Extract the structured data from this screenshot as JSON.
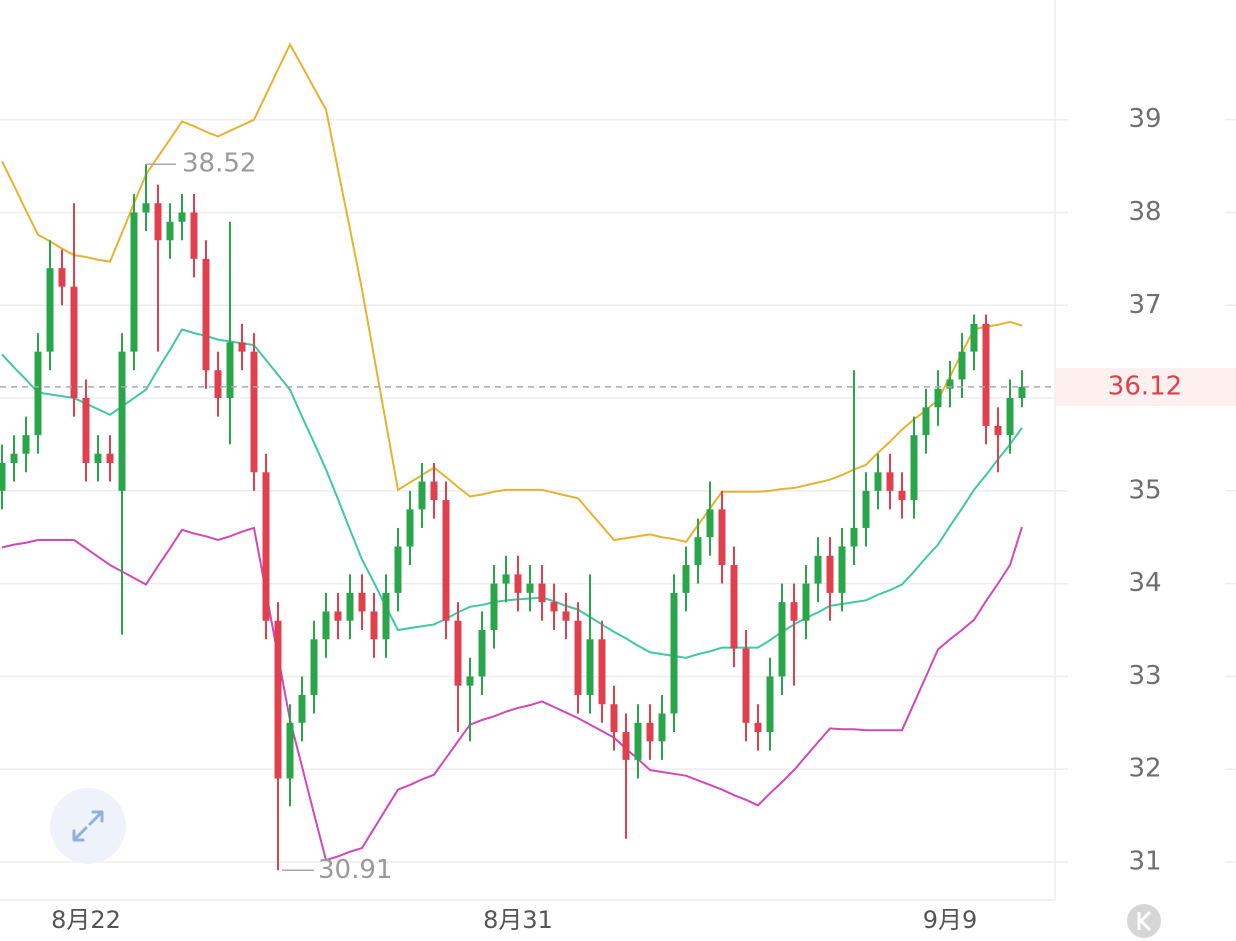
{
  "chart_data": {
    "type": "candlestick",
    "categories": [
      null,
      null,
      null,
      null,
      null,
      null,
      null,
      "8月22",
      null,
      null,
      null,
      null,
      null,
      null,
      null,
      null,
      null,
      null,
      null,
      null,
      null,
      null,
      null,
      null,
      null,
      null,
      null,
      null,
      null,
      null,
      null,
      null,
      null,
      null,
      null,
      null,
      null,
      null,
      null,
      null,
      null,
      null,
      null,
      "8月31",
      null,
      null,
      null,
      null,
      null,
      null,
      null,
      null,
      null,
      null,
      null,
      null,
      null,
      null,
      null,
      null,
      null,
      null,
      null,
      null,
      null,
      null,
      null,
      null,
      null,
      null,
      null,
      null,
      null,
      null,
      null,
      null,
      null,
      null,
      null,
      "9月9",
      null,
      null,
      null,
      null,
      null,
      null
    ],
    "open": [
      35.0,
      35.3,
      35.4,
      35.6,
      36.5,
      37.4,
      37.2,
      36.0,
      35.3,
      35.4,
      35.0,
      36.5,
      38.0,
      38.1,
      37.7,
      37.9,
      38.0,
      37.5,
      36.3,
      36.0,
      36.6,
      36.5,
      35.2,
      33.6,
      31.9,
      32.5,
      32.8,
      33.4,
      33.7,
      33.6,
      33.9,
      33.7,
      33.4,
      33.9,
      34.4,
      34.8,
      35.1,
      34.9,
      33.6,
      32.9,
      33.0,
      33.5,
      34.0,
      34.1,
      33.9,
      34.0,
      33.8,
      33.7,
      33.6,
      32.8,
      33.4,
      32.7,
      32.4,
      32.1,
      32.5,
      32.3,
      32.6,
      33.9,
      34.2,
      34.5,
      34.8,
      34.2,
      33.3,
      32.5,
      32.4,
      33.0,
      33.8,
      33.6,
      34.0,
      34.3,
      33.9,
      34.4,
      34.6,
      35.0,
      35.2,
      35.0,
      34.9,
      35.6,
      35.9,
      36.1,
      36.2,
      36.5,
      36.8,
      35.7,
      35.6,
      36.0
    ],
    "high": [
      35.5,
      35.6,
      35.8,
      36.7,
      37.7,
      37.6,
      38.1,
      36.2,
      35.6,
      35.6,
      36.7,
      38.2,
      38.52,
      38.3,
      38.1,
      38.2,
      38.2,
      37.7,
      36.5,
      37.9,
      36.8,
      36.7,
      35.4,
      33.8,
      32.7,
      33.0,
      33.6,
      33.9,
      33.9,
      34.1,
      34.1,
      33.9,
      34.1,
      34.6,
      35.0,
      35.3,
      35.3,
      35.1,
      33.8,
      33.2,
      33.7,
      34.2,
      34.3,
      34.3,
      34.2,
      34.2,
      34.0,
      33.9,
      33.8,
      34.1,
      33.6,
      32.9,
      32.6,
      32.7,
      32.7,
      32.8,
      34.1,
      34.4,
      34.7,
      35.1,
      35.0,
      34.4,
      33.5,
      32.7,
      33.2,
      34.0,
      34.0,
      34.2,
      34.5,
      34.5,
      34.6,
      36.3,
      35.2,
      35.4,
      35.4,
      35.2,
      35.8,
      36.1,
      36.3,
      36.4,
      36.7,
      36.9,
      36.9,
      35.9,
      36.2,
      36.3
    ],
    "low": [
      34.8,
      35.1,
      35.2,
      35.4,
      36.3,
      37.0,
      35.8,
      35.1,
      35.1,
      35.1,
      33.45,
      36.3,
      37.8,
      36.5,
      37.5,
      37.7,
      37.3,
      36.1,
      35.8,
      35.5,
      36.3,
      35.0,
      33.4,
      30.91,
      31.6,
      32.3,
      32.6,
      33.2,
      33.4,
      33.4,
      33.5,
      33.2,
      33.2,
      33.7,
      34.2,
      34.6,
      34.7,
      33.4,
      32.4,
      32.3,
      32.8,
      33.3,
      33.8,
      33.7,
      33.7,
      33.6,
      33.5,
      33.4,
      32.6,
      32.6,
      32.5,
      32.2,
      31.25,
      31.9,
      32.1,
      32.1,
      32.4,
      33.7,
      34.0,
      34.3,
      34.0,
      33.1,
      32.3,
      32.2,
      32.2,
      32.8,
      32.9,
      33.4,
      33.8,
      33.6,
      33.7,
      34.2,
      34.4,
      34.8,
      34.8,
      34.7,
      34.7,
      35.4,
      35.7,
      35.9,
      36.0,
      36.3,
      35.5,
      35.2,
      35.4,
      35.9
    ],
    "close": [
      35.3,
      35.4,
      35.6,
      36.5,
      37.4,
      37.2,
      36.0,
      35.3,
      35.4,
      35.3,
      36.5,
      38.0,
      38.1,
      37.7,
      37.9,
      38.0,
      37.5,
      36.3,
      36.0,
      36.6,
      36.5,
      35.2,
      33.6,
      31.9,
      32.5,
      32.8,
      33.4,
      33.7,
      33.6,
      33.9,
      33.7,
      33.4,
      33.9,
      34.4,
      34.8,
      35.1,
      34.9,
      33.6,
      32.9,
      33.0,
      33.5,
      34.0,
      34.1,
      33.9,
      34.0,
      33.8,
      33.7,
      33.6,
      32.8,
      33.4,
      32.7,
      32.4,
      32.1,
      32.5,
      32.3,
      32.6,
      33.9,
      34.2,
      34.5,
      34.8,
      34.2,
      33.3,
      32.5,
      32.4,
      33.0,
      33.8,
      33.6,
      34.0,
      34.3,
      33.9,
      34.4,
      34.6,
      35.0,
      35.2,
      35.0,
      34.9,
      35.6,
      35.9,
      36.1,
      36.2,
      36.5,
      36.8,
      35.7,
      35.6,
      36.0,
      36.12
    ],
    "up_color": "#2aa64a",
    "down_color": "#e0404e",
    "series": [
      {
        "color": "#e8b230",
        "values": [
          38.55,
          38.29,
          38.02,
          37.76,
          37.69,
          37.61,
          37.54,
          37.52,
          37.49,
          37.47,
          37.78,
          38.1,
          38.41,
          38.6,
          38.79,
          38.98,
          38.93,
          38.87,
          38.82,
          38.88,
          38.94,
          39.0,
          39.27,
          39.54,
          39.81,
          39.58,
          39.34,
          39.11,
          38.46,
          37.82,
          37.17,
          36.45,
          35.73,
          35.01,
          35.09,
          35.17,
          35.25,
          35.15,
          35.04,
          34.94,
          34.96,
          34.99,
          35.01,
          35.01,
          35.01,
          35.01,
          34.98,
          34.95,
          34.92,
          34.77,
          34.62,
          34.47,
          34.49,
          34.51,
          34.53,
          34.5,
          34.48,
          34.45,
          34.63,
          34.81,
          34.99,
          34.99,
          34.99,
          34.99,
          35.0,
          35.02,
          35.03,
          35.06,
          35.09,
          35.12,
          35.17,
          35.23,
          35.28,
          35.41,
          35.53,
          35.66,
          35.77,
          35.87,
          35.98,
          36.23,
          36.49,
          36.74,
          36.77,
          36.79,
          36.82,
          36.78
        ]
      },
      {
        "color": "#3ec9a2",
        "values": [
          36.47,
          36.33,
          36.2,
          36.06,
          36.04,
          36.02,
          36.0,
          35.94,
          35.88,
          35.82,
          35.91,
          36.0,
          36.09,
          36.31,
          36.52,
          36.74,
          36.7,
          36.67,
          36.63,
          36.61,
          36.59,
          36.57,
          36.41,
          36.25,
          36.09,
          35.8,
          35.52,
          35.23,
          34.91,
          34.58,
          34.26,
          34.01,
          33.75,
          33.5,
          33.52,
          33.54,
          33.56,
          33.62,
          33.69,
          33.75,
          33.77,
          33.8,
          33.82,
          33.83,
          33.84,
          33.85,
          33.81,
          33.76,
          33.72,
          33.64,
          33.56,
          33.48,
          33.41,
          33.33,
          33.26,
          33.24,
          33.22,
          33.2,
          33.24,
          33.27,
          33.31,
          33.31,
          33.31,
          33.31,
          33.39,
          33.48,
          33.56,
          33.63,
          33.69,
          33.76,
          33.78,
          33.8,
          33.82,
          33.88,
          33.93,
          33.99,
          34.13,
          34.28,
          34.42,
          34.62,
          34.81,
          35.01,
          35.17,
          35.34,
          35.5,
          35.68
        ]
      },
      {
        "color": "#d048bc",
        "values": [
          34.39,
          34.42,
          34.44,
          34.47,
          34.47,
          34.47,
          34.47,
          34.38,
          34.29,
          34.2,
          34.13,
          34.06,
          33.99,
          34.19,
          34.38,
          34.58,
          34.54,
          34.51,
          34.47,
          34.51,
          34.56,
          34.6,
          33.91,
          33.22,
          32.53,
          32.03,
          31.52,
          31.02,
          31.06,
          31.11,
          31.15,
          31.36,
          31.57,
          31.78,
          31.83,
          31.89,
          31.94,
          32.12,
          32.3,
          32.48,
          32.53,
          32.57,
          32.62,
          32.66,
          32.69,
          32.73,
          32.67,
          32.61,
          32.55,
          32.48,
          32.41,
          32.34,
          32.22,
          32.11,
          31.99,
          31.97,
          31.95,
          31.93,
          31.88,
          31.83,
          31.78,
          31.72,
          31.67,
          31.61,
          31.74,
          31.86,
          31.99,
          32.14,
          32.29,
          32.44,
          32.43,
          32.43,
          32.42,
          32.42,
          32.42,
          32.42,
          32.71,
          33.0,
          33.29,
          33.4,
          33.5,
          33.61,
          33.81,
          34.0,
          34.2,
          34.61
        ]
      }
    ],
    "ylim": [
      30.59,
      40.29
    ],
    "yticks": [
      31,
      32,
      33,
      34,
      35,
      36,
      37,
      38,
      39
    ],
    "grid": true,
    "high_annotation": 38.52,
    "low_annotation": 30.91,
    "last_price": 36.12,
    "last_price_color": "#e0404e"
  }
}
